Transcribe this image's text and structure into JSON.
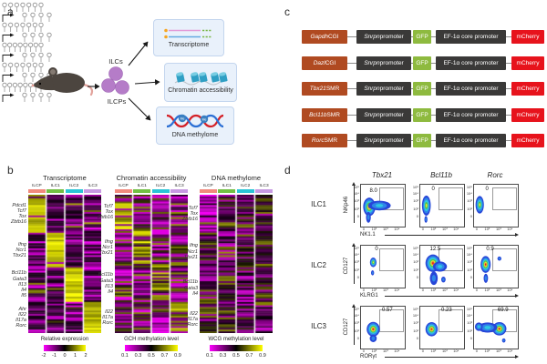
{
  "figure": {
    "panel_labels": {
      "a": "a",
      "b": "b",
      "c": "c",
      "d": "d"
    }
  },
  "panel_a": {
    "ilcs": "ILCs",
    "ilcps": "ILCPs",
    "me_label": "Me",
    "boxes": [
      {
        "title": "Transcriptome",
        "icon": "mrna-icon"
      },
      {
        "title": "Chromatin accessibility",
        "icon": "nucleosomes-icon"
      },
      {
        "title": "DNA methylome",
        "icon": "dna-methylation-icon"
      }
    ]
  },
  "panel_c": {
    "constructs": [
      {
        "insert": "Gapdh",
        "insert_suffix": " CGI",
        "cpgs": 7
      },
      {
        "insert": "Dazl",
        "insert_suffix": " CGI",
        "cpgs": 7
      },
      {
        "insert": "Tbx21",
        "insert_suffix": " SMR",
        "cpgs": 8
      },
      {
        "insert": "Bcl11b",
        "insert_suffix": " SMR",
        "cpgs": 7
      },
      {
        "insert": "Rorc",
        "insert_suffix": " SMR",
        "cpgs": 8
      }
    ],
    "elements": {
      "promoter_gene": "Snrpn",
      "promoter_suffix": " promoter",
      "gfp": "GFP",
      "ef1a": "EF-1α core promoter",
      "mcherry": "mCherry",
      "promoter_cpgs": 4
    },
    "colors": {
      "insert": "#b04a21",
      "dark": "#3a3938",
      "gfp": "#8eba3f",
      "mcherry": "#e7131c"
    }
  },
  "chart_data": [
    {
      "type": "heatmap",
      "title": "Transcriptome",
      "columns": [
        "ILCP",
        "ILC1",
        "ILC2",
        "ILC3"
      ],
      "column_colors": [
        "#f18a7d",
        "#71c043",
        "#2ac5d6",
        "#c79ae2"
      ],
      "pattern": "expression",
      "gene_groups": [
        {
          "genes": [
            "Pdcd1",
            "Tcf7",
            "Tox",
            "Zbtb16"
          ],
          "active": 0,
          "rows": 22
        },
        {
          "genes": [
            "Ifng",
            "Ncr1",
            "Tbx21"
          ],
          "active": 1,
          "rows": 20
        },
        {
          "genes": [
            "Bcl11b",
            "Gata3",
            "Il13",
            "Il4",
            "Il5"
          ],
          "active": 2,
          "rows": 20
        },
        {
          "genes": [
            "Ahr",
            "Il22",
            "Il17a",
            "Rorc"
          ],
          "active": 3,
          "rows": 18
        }
      ],
      "colorbar": {
        "label": "Relative expression",
        "ticks": [
          "-2",
          "-1",
          "0",
          "1",
          "2"
        ],
        "gradient": [
          "#ff00ff",
          "#000000",
          "#ffff00"
        ]
      }
    },
    {
      "type": "heatmap",
      "title": "Chromatin accessibility",
      "columns": [
        "ILCP",
        "ILC1",
        "ILC2",
        "ILC3"
      ],
      "column_colors": [
        "#f18a7d",
        "#71c043",
        "#2ac5d6",
        "#c79ae2"
      ],
      "pattern": "gch",
      "gene_groups": [
        {
          "genes": [
            "Tcf7",
            "Tox",
            "Zbtb16"
          ],
          "active": 0,
          "rows": 20
        },
        {
          "genes": [
            "Ifng",
            "Ncr1",
            "Tbx21"
          ],
          "active": 1,
          "rows": 21
        },
        {
          "genes": [
            "Bcl11b",
            "Gata3",
            "Il13",
            "Il4"
          ],
          "active": 2,
          "rows": 21
        },
        {
          "genes": [
            "Il22",
            "Il17a",
            "Rorc"
          ],
          "active": 3,
          "rows": 18
        }
      ],
      "colorbar": {
        "label": "GCH methylation level",
        "ticks": [
          "0.1",
          "0.3",
          "0.5",
          "0.7",
          "0.9"
        ],
        "gradient": [
          "#ff00ff",
          "#000000",
          "#ffff00"
        ]
      }
    },
    {
      "type": "heatmap",
      "title": "DNA methylome",
      "columns": [
        "ILCP",
        "ILC1",
        "ILC2",
        "ILC3"
      ],
      "column_colors": [
        "#f18a7d",
        "#71c043",
        "#2ac5d6",
        "#c79ae2"
      ],
      "pattern": "wcg",
      "gene_groups": [
        {
          "genes": [
            "Tcf7",
            "Tox",
            "Zbtb16"
          ],
          "active": 0,
          "rows": 22
        },
        {
          "genes": [
            "Ifng",
            "Ncr1",
            "Tbx21"
          ],
          "active": 1,
          "rows": 22
        },
        {
          "genes": [
            "Bcl11b",
            "Gata3",
            "Il4"
          ],
          "active": 2,
          "rows": 20
        },
        {
          "genes": [
            "Il22",
            "Il17a",
            "Rorc"
          ],
          "active": 3,
          "rows": 16
        }
      ],
      "colorbar": {
        "label": "WCG methylation level",
        "ticks": [
          "0.1",
          "0.3",
          "0.5",
          "0.7",
          "0.9"
        ],
        "gradient": [
          "#ff00ff",
          "#000000",
          "#ffff00"
        ]
      }
    },
    {
      "type": "flow_cytometry",
      "column_titles": [
        "Tbx21",
        "Bcl11b",
        "Rorc"
      ],
      "x_ticks": [
        "0",
        "10²",
        "10³",
        "10⁴"
      ],
      "y_ticks": [
        "10⁵",
        "10⁴",
        "10³",
        "10²",
        "0"
      ],
      "gate": {
        "x": 0.44,
        "y": 0.09,
        "w": 0.52,
        "h": 0.5
      },
      "rows": [
        {
          "label": "ILC1",
          "y_axis": "NKp46",
          "x_axis": "NK1.1",
          "plots": [
            {
              "percent": "8.0",
              "percent_pos": [
                0.22,
                0.1
              ],
              "populations": [
                {
                  "x": 0.21,
                  "y": 0.55,
                  "rx": 0.14,
                  "ry": 0.22,
                  "heat": 3
                },
                {
                  "x": 0.44,
                  "y": 0.52,
                  "rx": 0.26,
                  "ry": 0.115,
                  "heat": 1
                },
                {
                  "x": 0.19,
                  "y": 0.8,
                  "rx": 0.055,
                  "ry": 0.13,
                  "heat": 0
                }
              ]
            },
            {
              "percent": "0",
              "percent_pos": [
                0.28,
                0.07
              ],
              "populations": [
                {
                  "x": 0.16,
                  "y": 0.52,
                  "rx": 0.1,
                  "ry": 0.24,
                  "heat": 2
                },
                {
                  "x": 0.15,
                  "y": 0.85,
                  "rx": 0.035,
                  "ry": 0.08,
                  "heat": 0
                }
              ]
            },
            {
              "percent": "0",
              "percent_pos": [
                0.28,
                0.07
              ],
              "populations": [
                {
                  "x": 0.15,
                  "y": 0.5,
                  "rx": 0.095,
                  "ry": 0.21,
                  "heat": 2
                }
              ]
            }
          ]
        },
        {
          "label": "ILC2",
          "y_axis": "CD127",
          "x_axis": "KLRG1",
          "plots": [
            {
              "percent": "0",
              "percent_pos": [
                0.34,
                0.05
              ],
              "populations": [
                {
                  "x": 0.3,
                  "y": 0.42,
                  "rx": 0.075,
                  "ry": 0.115,
                  "heat": 2
                },
                {
                  "x": 0.285,
                  "y": 0.67,
                  "rx": 0.035,
                  "ry": 0.06,
                  "heat": 0
                }
              ]
            },
            {
              "percent": "12.5",
              "percent_pos": [
                0.24,
                0.05
              ],
              "populations": [
                {
                  "x": 0.31,
                  "y": 0.44,
                  "rx": 0.17,
                  "ry": 0.21,
                  "heat": 3
                },
                {
                  "x": 0.47,
                  "y": 0.52,
                  "rx": 0.16,
                  "ry": 0.12,
                  "heat": 1
                },
                {
                  "x": 0.33,
                  "y": 0.8,
                  "rx": 0.09,
                  "ry": 0.16,
                  "heat": 0
                },
                {
                  "x": 0.55,
                  "y": 0.83,
                  "rx": 0.05,
                  "ry": 0.07,
                  "heat": 0
                }
              ]
            },
            {
              "percent": "0.9",
              "percent_pos": [
                0.3,
                0.05
              ],
              "populations": [
                {
                  "x": 0.285,
                  "y": 0.47,
                  "rx": 0.115,
                  "ry": 0.2,
                  "heat": 3
                },
                {
                  "x": 0.29,
                  "y": 0.8,
                  "rx": 0.05,
                  "ry": 0.11,
                  "heat": 0
                },
                {
                  "x": 0.6,
                  "y": 0.33,
                  "rx": 0.045,
                  "ry": 0.05,
                  "heat": 0
                }
              ]
            }
          ]
        },
        {
          "label": "ILC3",
          "y_axis": "CD127",
          "x_axis": "RORγt",
          "plots": [
            {
              "percent": "0.57",
              "percent_pos": [
                0.5,
                0.05
              ],
              "populations": [
                {
                  "x": 0.3,
                  "y": 0.56,
                  "rx": 0.15,
                  "ry": 0.175,
                  "heat": 3
                },
                {
                  "x": 0.3,
                  "y": 0.78,
                  "rx": 0.08,
                  "ry": 0.09,
                  "heat": 0
                }
              ]
            },
            {
              "percent": "0.23",
              "percent_pos": [
                0.5,
                0.05
              ],
              "populations": [
                {
                  "x": 0.28,
                  "y": 0.56,
                  "rx": 0.14,
                  "ry": 0.17,
                  "heat": 3
                }
              ]
            },
            {
              "percent": "69.9",
              "percent_pos": [
                0.56,
                0.05
              ],
              "populations": [
                {
                  "x": 0.6,
                  "y": 0.55,
                  "rx": 0.16,
                  "ry": 0.16,
                  "heat": 3
                },
                {
                  "x": 0.33,
                  "y": 0.52,
                  "rx": 0.22,
                  "ry": 0.12,
                  "heat": 1
                },
                {
                  "x": 0.13,
                  "y": 0.5,
                  "rx": 0.09,
                  "ry": 0.1,
                  "heat": 1
                },
                {
                  "x": 0.7,
                  "y": 0.83,
                  "rx": 0.04,
                  "ry": 0.05,
                  "heat": 0
                }
              ]
            }
          ]
        }
      ]
    }
  ]
}
